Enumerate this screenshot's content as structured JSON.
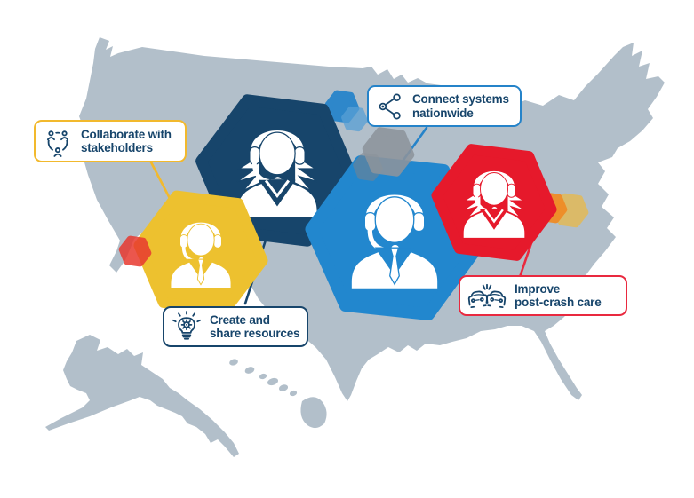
{
  "callouts": {
    "collaborate": {
      "line1": "Collaborate with",
      "line2": "stakeholders",
      "icon": "people-cycle-icon",
      "border_color": "#f2b92d"
    },
    "connect": {
      "line1": "Connect systems",
      "line2": "nationwide",
      "icon": "share-network-icon",
      "border_color": "#2583c9"
    },
    "create": {
      "line1": "Create and",
      "line2": "share resources",
      "icon": "lightbulb-gear-icon",
      "border_color": "#17456b"
    },
    "improve": {
      "line1": "Improve",
      "line2": "post-crash care",
      "icon": "car-crash-icon",
      "border_color": "#e9293f"
    }
  },
  "map": {
    "label": "United States silhouette with Alaska and Hawaii",
    "color": "#b2bfca"
  },
  "hexagons": [
    {
      "name": "navy-hexagon",
      "color": "#17456b",
      "operator": "female-operator-with-headset"
    },
    {
      "name": "gold-hexagon",
      "color": "#edc12f",
      "operator": "male-operator-with-headset"
    },
    {
      "name": "blue-hexagon",
      "color": "#2287ce",
      "operator": "male-operator-with-headset"
    },
    {
      "name": "red-hexagon",
      "color": "#e6192b",
      "operator": "female-operator-with-headset"
    }
  ],
  "accent_hexagons": [
    {
      "name": "small-red-hexagon",
      "color": "#e8392f"
    },
    {
      "name": "small-blue-hexagon",
      "color": "#2e87ca"
    },
    {
      "name": "small-light-blue-hexagon",
      "color": "#58a0d5"
    },
    {
      "name": "small-gray-hexagon",
      "color": "#8d949c"
    },
    {
      "name": "small-orange-hexagon",
      "color": "#f08c26"
    },
    {
      "name": "small-tan-hexagon",
      "color": "#dbba68"
    }
  ],
  "colors": {
    "text": "#17456b",
    "map": "#b2bfca",
    "navy": "#17456b",
    "blue": "#2287ce",
    "gold": "#edc12f",
    "red": "#e6192b"
  }
}
